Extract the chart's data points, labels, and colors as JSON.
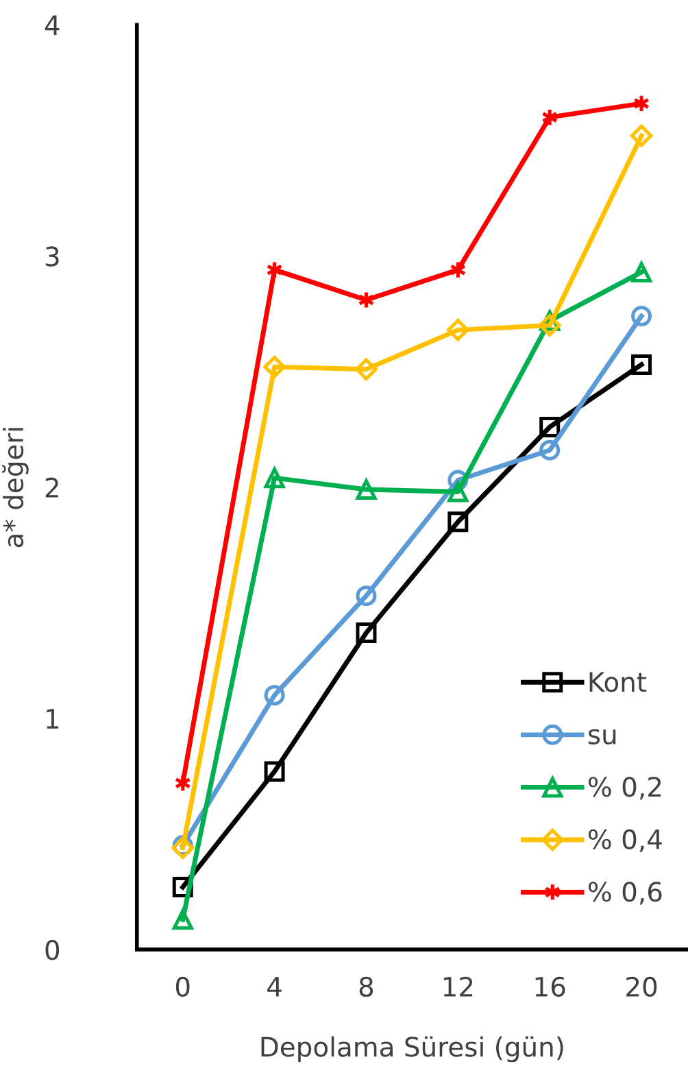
{
  "chart_data": {
    "type": "line",
    "xlabel": "Depolama Süresi (gün)",
    "ylabel": "a* değeri",
    "categories": [
      "0",
      "4",
      "8",
      "12",
      "16",
      "20"
    ],
    "series": [
      {
        "name": "Kont",
        "color": "#000000",
        "marker": "square",
        "values": [
          0.27,
          0.77,
          1.37,
          1.85,
          2.26,
          2.53
        ]
      },
      {
        "name": "su",
        "color": "#5b9bd5",
        "marker": "circle",
        "values": [
          0.45,
          1.1,
          1.53,
          2.03,
          2.16,
          2.74
        ]
      },
      {
        "name": "% 0,2",
        "color": "#00b050",
        "marker": "triangle",
        "values": [
          0.13,
          2.04,
          1.99,
          1.98,
          2.72,
          2.93
        ]
      },
      {
        "name": "% 0,4",
        "color": "#ffc000",
        "marker": "diamond",
        "values": [
          0.44,
          2.52,
          2.51,
          2.68,
          2.7,
          3.52
        ]
      },
      {
        "name": "% 0,6",
        "color": "#ff0000",
        "marker": "cross",
        "values": [
          0.72,
          2.94,
          2.81,
          2.94,
          3.6,
          3.66
        ]
      }
    ],
    "ylim": [
      0,
      4
    ],
    "yticks": [
      0,
      1,
      2,
      3,
      4
    ],
    "grid": false,
    "legend": "bottom right",
    "line_style": "solid"
  }
}
